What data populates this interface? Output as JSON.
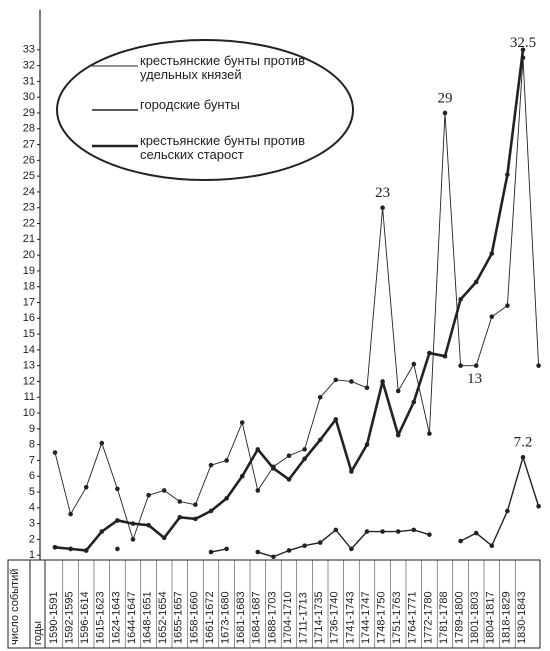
{
  "chart_data": {
    "type": "line",
    "y_label": "число событий",
    "x_label": "годы",
    "categories": [
      "1590-1591",
      "1592-1595",
      "1596-1614",
      "1615-1623",
      "1624-1643",
      "1644-1647",
      "1648-1651",
      "1652-1654",
      "1655-1657",
      "1658-1660",
      "1661-1672",
      "1673-1680",
      "1681-1683",
      "1684-1687",
      "1688-1703",
      "1704-1710",
      "1711-1713",
      "1714-1735",
      "1736-1740",
      "1741-1743",
      "1744-1747",
      "1748-1750",
      "1751-1763",
      "1764-1771",
      "1772-1780",
      "1781-1788",
      "1789-1800",
      "1801-1803",
      "1804-1817",
      "1818-1829",
      "1830-1843",
      null
    ],
    "series": [
      {
        "name": "крестьянские бунты против удельных князей",
        "color": "#222222",
        "line_width": 0.9,
        "values": [
          7.5,
          3.6,
          5.3,
          8.1,
          5.2,
          2.0,
          4.8,
          5.1,
          4.4,
          4.2,
          6.7,
          7.0,
          9.4,
          5.1,
          6.6,
          7.3,
          7.7,
          11.0,
          12.1,
          12.0,
          11.6,
          23,
          11.4,
          13.1,
          8.7,
          29,
          13,
          13,
          16.1,
          16.8,
          32.5,
          13
        ],
        "value_labels": [
          null,
          null,
          null,
          null,
          null,
          null,
          null,
          null,
          null,
          null,
          null,
          null,
          null,
          null,
          null,
          null,
          null,
          null,
          null,
          null,
          null,
          "23",
          null,
          null,
          null,
          "29",
          "13",
          null,
          null,
          null,
          "32.5",
          null
        ]
      },
      {
        "name": "городские бунты",
        "color": "#222222",
        "line_width": 1.4,
        "values": [
          1.5,
          1.4,
          1.3,
          null,
          1.4,
          null,
          null,
          null,
          null,
          null,
          1.2,
          1.4,
          null,
          1.2,
          0.9,
          1.3,
          1.6,
          1.8,
          2.6,
          1.4,
          2.5,
          2.5,
          2.5,
          2.6,
          2.3,
          null,
          1.9,
          2.4,
          1.6,
          3.8,
          7.2,
          4.1
        ],
        "value_labels": [
          null,
          null,
          null,
          null,
          null,
          null,
          null,
          null,
          null,
          null,
          null,
          null,
          null,
          null,
          null,
          null,
          null,
          null,
          null,
          null,
          null,
          null,
          null,
          null,
          null,
          null,
          null,
          null,
          null,
          null,
          "7.2",
          null
        ]
      },
      {
        "name": "крестьянские бунты против сельских старост",
        "color": "#222222",
        "line_width": 2.6,
        "values": [
          1.5,
          1.4,
          1.3,
          2.5,
          3.2,
          3.0,
          2.9,
          2.1,
          3.4,
          3.3,
          3.8,
          4.6,
          6.0,
          7.7,
          6.5,
          5.8,
          7.1,
          8.3,
          9.6,
          6.3,
          8.0,
          12.0,
          8.6,
          10.7,
          13.8,
          13.6,
          17.2,
          18.3,
          20.1,
          25.1,
          33,
          null
        ]
      }
    ],
    "ylim": [
      0,
      34
    ],
    "yticks": [
      1,
      2,
      3,
      4,
      5,
      6,
      7,
      8,
      9,
      10,
      11,
      12,
      13,
      14,
      15,
      16,
      17,
      18,
      19,
      20,
      21,
      22,
      23,
      24,
      25,
      26,
      27,
      28,
      29,
      30,
      31,
      32,
      33
    ]
  }
}
